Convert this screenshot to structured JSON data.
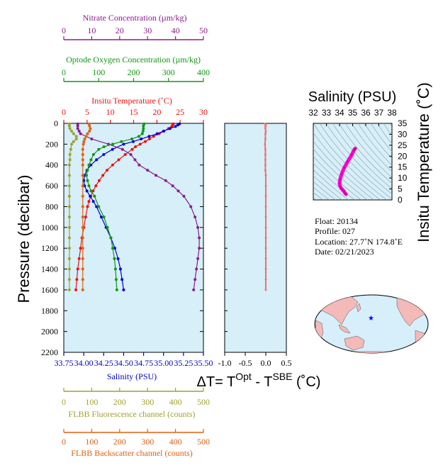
{
  "chart_data": [
    {
      "type": "line",
      "panel": "main-profile",
      "ylabel": "Pressure (decibar)",
      "ylim": [
        2200,
        0
      ],
      "yticks": [
        0,
        200,
        400,
        600,
        800,
        1000,
        1200,
        1400,
        1600,
        1800,
        2000,
        2200
      ],
      "grid": false,
      "axes": [
        {
          "id": "nitrate",
          "label": "Nitrate Concentration (µm/kg)",
          "range": [
            0,
            50
          ],
          "ticks": [
            "0",
            "10",
            "20",
            "30",
            "40",
            "50"
          ],
          "color": "#8b1c8b"
        },
        {
          "id": "oxygen",
          "label": "Optode Oxygen Concentration (µm/kg)",
          "range": [
            0,
            400
          ],
          "ticks": [
            "0",
            "100",
            "200",
            "300",
            "400"
          ],
          "color": "#129612"
        },
        {
          "id": "temperature",
          "label": "Insitu Temperature (˚C)",
          "range": [
            0,
            30
          ],
          "ticks": [
            "0",
            "5",
            "10",
            "15",
            "20",
            "25",
            "30"
          ],
          "color": "#ee1111"
        },
        {
          "id": "salinity",
          "label": "Salinity (PSU)",
          "range": [
            33.75,
            35.5
          ],
          "ticks": [
            "33.75",
            "34.00",
            "34.25",
            "34.50",
            "34.75",
            "35.00",
            "35.25",
            "35.50"
          ],
          "color": "#0000cc"
        },
        {
          "id": "fluorescence",
          "label": "FLBB Fluorescence channel (counts)",
          "range": [
            0,
            500
          ],
          "ticks": [
            "0",
            "100",
            "200",
            "300",
            "400",
            "500"
          ],
          "color": "#a0a030"
        },
        {
          "id": "backscatter",
          "label": "FLBB Backscatter channel (counts)",
          "range": [
            0,
            500
          ],
          "ticks": [
            "0",
            "100",
            "200",
            "300",
            "400",
            "500"
          ],
          "color": "#e06010"
        }
      ],
      "series": [
        {
          "axis": "temperature",
          "color": "#ee1111",
          "p": [
            5,
            15,
            30,
            50,
            75,
            100,
            125,
            150,
            175,
            200,
            225,
            250,
            300,
            350,
            400,
            450,
            500,
            550,
            600,
            650,
            700,
            750,
            800,
            900,
            1000,
            1100,
            1200,
            1300,
            1400,
            1500,
            1600
          ],
          "v": [
            23.5,
            23.4,
            23.2,
            22.5,
            21.5,
            20.5,
            19.3,
            18.4,
            17.5,
            16.4,
            15.4,
            14.7,
            13.2,
            11.8,
            10.5,
            9.3,
            8.4,
            7.6,
            6.9,
            6.3,
            5.8,
            5.4,
            5.1,
            4.7,
            4.3,
            3.9,
            3.6,
            3.3,
            3.0,
            2.8,
            2.6
          ]
        },
        {
          "axis": "salinity",
          "color": "#0000dd",
          "p": [
            5,
            15,
            30,
            50,
            75,
            100,
            125,
            150,
            175,
            200,
            250,
            300,
            350,
            400,
            450,
            500,
            550,
            600,
            650,
            700,
            750,
            800,
            900,
            1000,
            1100,
            1200,
            1300,
            1400,
            1500,
            1600
          ],
          "v": [
            35.2,
            35.18,
            35.15,
            35.08,
            35.0,
            34.92,
            34.82,
            34.72,
            34.62,
            34.5,
            34.36,
            34.25,
            34.16,
            34.09,
            34.04,
            34.01,
            34.0,
            34.01,
            34.04,
            34.08,
            34.12,
            34.16,
            34.22,
            34.28,
            34.34,
            34.39,
            34.43,
            34.46,
            34.48,
            34.5
          ]
        },
        {
          "axis": "nitrate",
          "color": "#8b1c8b",
          "p": [
            5,
            25,
            50,
            75,
            100,
            150,
            200,
            250,
            300,
            350,
            400,
            450,
            500,
            550,
            600,
            650,
            700,
            800,
            900,
            1000,
            1100,
            1200,
            1300,
            1400,
            1500,
            1600
          ],
          "v": [
            5,
            5,
            5,
            5.5,
            6,
            10,
            16,
            21,
            24,
            25.5,
            27,
            30,
            33,
            36.5,
            39,
            41,
            43,
            45.5,
            47,
            48,
            48.5,
            48.5,
            48,
            47.5,
            47,
            46.5
          ]
        },
        {
          "axis": "oxygen",
          "color": "#129612",
          "p": [
            5,
            25,
            50,
            75,
            100,
            125,
            150,
            175,
            200,
            225,
            250,
            300,
            350,
            400,
            450,
            500,
            550,
            600,
            650,
            700,
            800,
            900,
            1000,
            1100,
            1200,
            1300,
            1400,
            1500,
            1600
          ],
          "v": [
            230,
            228,
            228,
            227,
            225,
            215,
            195,
            165,
            140,
            115,
            100,
            85,
            78,
            72,
            68,
            65,
            68,
            72,
            78,
            88,
            100,
            115,
            125,
            135,
            140,
            145,
            148,
            150,
            152
          ]
        },
        {
          "axis": "fluorescence",
          "color": "#a0a030",
          "p": [
            5,
            25,
            50,
            75,
            100,
            125,
            150,
            175,
            200,
            250,
            300,
            350,
            400,
            500,
            600,
            700,
            800,
            900,
            1000,
            1100,
            1200,
            1300,
            1400,
            1500,
            1600
          ],
          "v": [
            20,
            20,
            22,
            28,
            35,
            45,
            45,
            35,
            28,
            25,
            22,
            22,
            20,
            20,
            20,
            20,
            20,
            20,
            20,
            20,
            20,
            20,
            20,
            20,
            20
          ]
        },
        {
          "axis": "backscatter",
          "color": "#e06010",
          "p": [
            5,
            25,
            50,
            75,
            100,
            125,
            150,
            175,
            200,
            250,
            300,
            350,
            400,
            500,
            600,
            700,
            800,
            900,
            1000,
            1100,
            1200,
            1300,
            1400,
            1500,
            1600
          ],
          "v": [
            90,
            92,
            95,
            92,
            85,
            80,
            75,
            72,
            70,
            68,
            68,
            68,
            68,
            68,
            68,
            68,
            68,
            68,
            68,
            68,
            68,
            68,
            68,
            68,
            68
          ]
        }
      ]
    },
    {
      "type": "line",
      "panel": "delta-t",
      "xlabel_parts": {
        "prefix": "ΔT= T",
        "sup1": "Opt",
        "mid": " - T",
        "sup2": "SBE",
        "suffix": " (˚C)"
      },
      "xlim": [
        -1.0,
        0.5
      ],
      "xticks": [
        "-1.0",
        "-0.5",
        "0.0",
        "0.5"
      ],
      "ylim": [
        2200,
        0
      ],
      "series": [
        {
          "color": "#f07070",
          "p": [
            5,
            15,
            30,
            50,
            75,
            100,
            150,
            200,
            250,
            300,
            350,
            400,
            450,
            500,
            600,
            700,
            800,
            900,
            1000,
            1100,
            1200,
            1300,
            1400,
            1500,
            1600
          ],
          "v": [
            -0.02,
            0.0,
            -0.01,
            -0.01,
            0.0,
            -0.01,
            -0.01,
            -0.02,
            -0.01,
            -0.01,
            -0.01,
            -0.01,
            -0.01,
            0.0,
            0.0,
            0.0,
            0.0,
            0.0,
            0.0,
            0.0,
            0.0,
            0.0,
            0.0,
            0.0,
            0.0
          ]
        }
      ]
    },
    {
      "type": "scatter",
      "panel": "ts-diagram",
      "title": "Salinity (PSU)",
      "ylabel": "Insitu Temperature (˚C)",
      "xlim": [
        32,
        38
      ],
      "ylim": [
        0,
        35
      ],
      "xticks": [
        "32",
        "33",
        "34",
        "35",
        "36",
        "37",
        "38"
      ],
      "yticks": [
        "0",
        "5",
        "10",
        "15",
        "20",
        "25",
        "30",
        "35"
      ],
      "series": [
        {
          "color": "#ff00cc",
          "s": [
            34.5,
            34.43,
            34.34,
            34.22,
            34.12,
            34.04,
            34.0,
            34.04,
            34.16,
            34.36,
            34.62,
            34.92,
            35.08,
            35.15,
            35.2
          ],
          "t": [
            2.6,
            3.0,
            3.9,
            4.7,
            5.4,
            6.3,
            7.6,
            9.3,
            11.8,
            14.7,
            17.5,
            20.5,
            22.5,
            23.2,
            23.5
          ]
        }
      ]
    }
  ],
  "float_info": {
    "float": "Float:  20134",
    "profile": "Profile:  027",
    "location": "Location:  27.7˚N  174.8˚E",
    "date": "Date:  02/21/2023"
  },
  "map": {
    "marker": "float-position",
    "marker_color": "#0000ff",
    "ocean_color": "#d7effa",
    "land_color": "#f4b9b9"
  }
}
